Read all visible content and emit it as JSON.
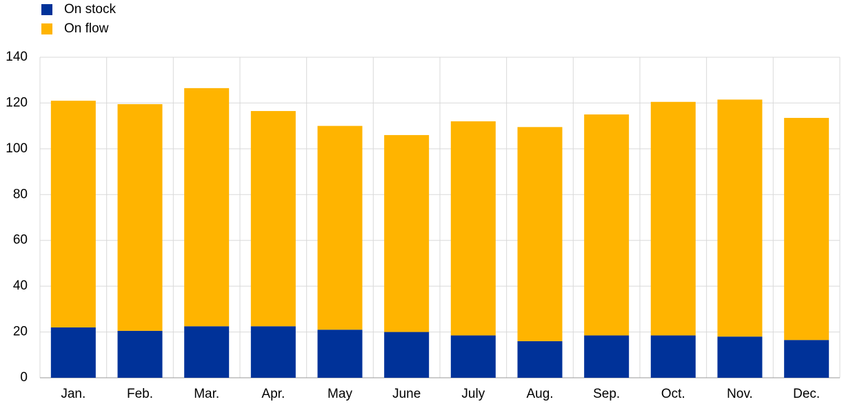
{
  "chart_data": {
    "type": "stacked-bar",
    "categories": [
      "Jan.",
      "Feb.",
      "Mar.",
      "Apr.",
      "May",
      "June",
      "July",
      "Aug.",
      "Sep.",
      "Oct.",
      "Nov.",
      "Dec."
    ],
    "series": [
      {
        "name": "On stock",
        "color": "#003299",
        "values": [
          22,
          20.5,
          22.5,
          22.5,
          21,
          20,
          18.5,
          16,
          18.5,
          18.5,
          18,
          16.5
        ]
      },
      {
        "name": "On flow",
        "color": "#ffb400",
        "values": [
          99,
          99,
          104,
          94,
          89,
          86,
          93.5,
          93.5,
          96.5,
          102,
          103.5,
          97
        ]
      }
    ],
    "ylim": [
      0,
      140
    ],
    "yticks": [
      0,
      20,
      40,
      60,
      80,
      100,
      120,
      140
    ],
    "grid": true
  }
}
